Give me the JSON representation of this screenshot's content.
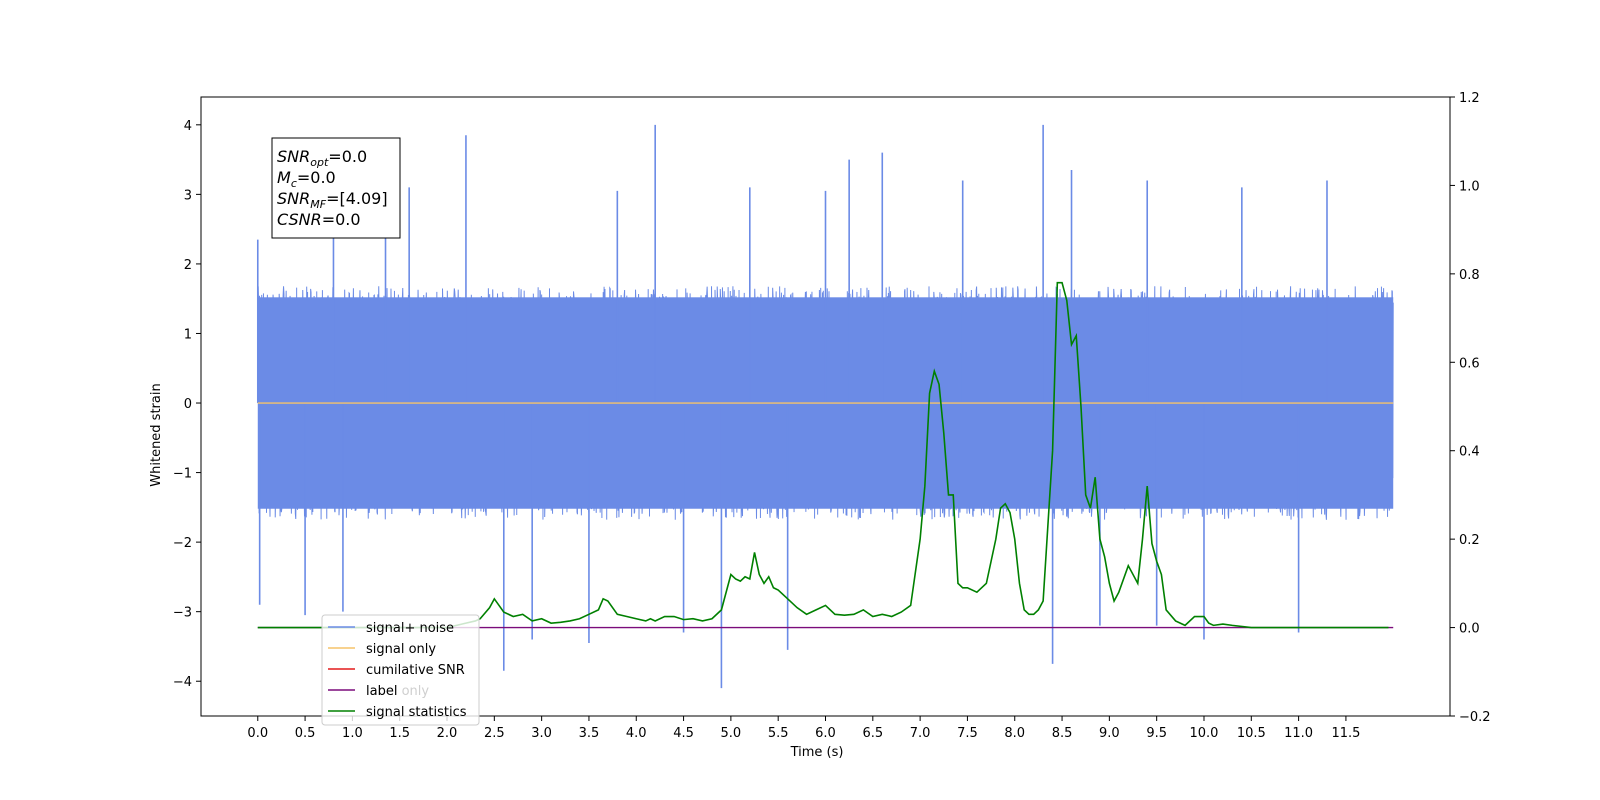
{
  "chart_data": {
    "type": "line",
    "title": "",
    "xlabel": "Time (s)",
    "ylabel": "Whitened strain",
    "y2label": "",
    "xlim": [
      -0.6,
      12.6
    ],
    "ylim": [
      -4.5,
      4.4
    ],
    "y2lim": [
      -0.2,
      1.2
    ],
    "x_ticks": [
      0.0,
      0.5,
      1.0,
      1.5,
      2.0,
      2.5,
      3.0,
      3.5,
      4.0,
      4.5,
      5.0,
      5.5,
      6.0,
      6.5,
      7.0,
      7.5,
      8.0,
      8.5,
      9.0,
      9.5,
      10.0,
      10.5,
      11.0,
      11.5
    ],
    "x_tick_labels": [
      "0.0",
      "0.5",
      "1.0",
      "1.5",
      "2.0",
      "2.5",
      "3.0",
      "3.5",
      "4.0",
      "4.5",
      "5.0",
      "5.5",
      "6.0",
      "6.5",
      "7.0",
      "7.5",
      "8.0",
      "8.5",
      "9.0",
      "9.5",
      "10.0",
      "10.5",
      "11.0",
      "11.5"
    ],
    "y_ticks": [
      -4,
      -3,
      -2,
      -1,
      0,
      1,
      2,
      3,
      4
    ],
    "y_tick_labels": [
      "−4",
      "−3",
      "−2",
      "−1",
      "0",
      "1",
      "2",
      "3",
      "4"
    ],
    "y2_ticks": [
      -0.2,
      0.0,
      0.2,
      0.4,
      0.6,
      0.8,
      1.0,
      1.2
    ],
    "y2_tick_labels": [
      "−0.2",
      "0.0",
      "0.2",
      "0.4",
      "0.6",
      "0.8",
      "1.0",
      "1.2"
    ],
    "grid": false,
    "legend_position": "lower-left",
    "series": [
      {
        "name": "signal+ noise",
        "axis": "left",
        "color": "#6b8be6",
        "kind": "noise",
        "x_range": [
          0.0,
          12.0
        ],
        "envelope": [
          1.6,
          -1.6
        ],
        "spikes": [
          {
            "x": 0.0,
            "y": 2.35
          },
          {
            "x": 0.02,
            "y": -2.9
          },
          {
            "x": 0.5,
            "y": -3.05
          },
          {
            "x": 0.8,
            "y": 3.05
          },
          {
            "x": 0.9,
            "y": -3.0
          },
          {
            "x": 1.35,
            "y": 3.05
          },
          {
            "x": 1.6,
            "y": 3.1
          },
          {
            "x": 2.2,
            "y": 3.85
          },
          {
            "x": 2.6,
            "y": -3.85
          },
          {
            "x": 2.9,
            "y": -3.4
          },
          {
            "x": 3.5,
            "y": -3.45
          },
          {
            "x": 3.8,
            "y": 3.05
          },
          {
            "x": 4.2,
            "y": 4.0
          },
          {
            "x": 4.5,
            "y": -3.3
          },
          {
            "x": 4.9,
            "y": -4.1
          },
          {
            "x": 5.2,
            "y": 3.1
          },
          {
            "x": 5.6,
            "y": -3.55
          },
          {
            "x": 6.0,
            "y": 3.05
          },
          {
            "x": 6.25,
            "y": 3.5
          },
          {
            "x": 6.6,
            "y": 3.6
          },
          {
            "x": 7.45,
            "y": 3.2
          },
          {
            "x": 8.3,
            "y": 4.0
          },
          {
            "x": 8.4,
            "y": -3.75
          },
          {
            "x": 8.6,
            "y": 3.35
          },
          {
            "x": 8.9,
            "y": -3.2
          },
          {
            "x": 9.4,
            "y": 3.2
          },
          {
            "x": 9.5,
            "y": -3.2
          },
          {
            "x": 10.0,
            "y": -3.4
          },
          {
            "x": 10.4,
            "y": 3.1
          },
          {
            "x": 11.0,
            "y": -3.3
          },
          {
            "x": 11.3,
            "y": 3.2
          }
        ]
      },
      {
        "name": "signal only",
        "axis": "left",
        "color": "#f5c36a",
        "x": [
          0.0,
          12.0
        ],
        "y": [
          0.0,
          0.0
        ]
      },
      {
        "name": "cumilative SNR",
        "axis": "right",
        "color": "#e31a1c",
        "x": [],
        "y": []
      },
      {
        "name": "label",
        "axis": "right",
        "color": "#7b0c7b",
        "x": [
          0.0,
          12.0
        ],
        "y": [
          0.0,
          0.0
        ]
      },
      {
        "name": "signal statistics",
        "axis": "right",
        "color": "#008000",
        "x": [
          0.0,
          2.0,
          2.1,
          2.2,
          2.3,
          2.35,
          2.45,
          2.5,
          2.6,
          2.7,
          2.8,
          2.9,
          3.0,
          3.1,
          3.2,
          3.3,
          3.4,
          3.5,
          3.6,
          3.65,
          3.7,
          3.8,
          3.9,
          4.0,
          4.1,
          4.15,
          4.2,
          4.3,
          4.4,
          4.5,
          4.6,
          4.7,
          4.8,
          4.9,
          5.0,
          5.05,
          5.1,
          5.15,
          5.2,
          5.25,
          5.3,
          5.35,
          5.4,
          5.45,
          5.5,
          5.6,
          5.7,
          5.8,
          5.9,
          6.0,
          6.1,
          6.2,
          6.3,
          6.4,
          6.5,
          6.6,
          6.7,
          6.8,
          6.9,
          7.0,
          7.05,
          7.1,
          7.15,
          7.2,
          7.25,
          7.3,
          7.35,
          7.4,
          7.45,
          7.5,
          7.6,
          7.7,
          7.8,
          7.85,
          7.9,
          7.95,
          8.0,
          8.05,
          8.1,
          8.15,
          8.2,
          8.25,
          8.3,
          8.4,
          8.45,
          8.5,
          8.55,
          8.6,
          8.65,
          8.7,
          8.75,
          8.8,
          8.85,
          8.9,
          8.95,
          9.0,
          9.05,
          9.1,
          9.2,
          9.3,
          9.35,
          9.4,
          9.45,
          9.5,
          9.55,
          9.6,
          9.7,
          9.8,
          9.9,
          10.0,
          10.05,
          10.1,
          10.2,
          10.3,
          10.5,
          11.0,
          11.5,
          11.95
        ],
        "y": [
          0.0,
          0.0,
          0.005,
          0.01,
          0.015,
          0.02,
          0.045,
          0.065,
          0.035,
          0.025,
          0.03,
          0.015,
          0.02,
          0.01,
          0.012,
          0.015,
          0.02,
          0.03,
          0.04,
          0.065,
          0.06,
          0.03,
          0.025,
          0.02,
          0.015,
          0.02,
          0.015,
          0.025,
          0.025,
          0.018,
          0.02,
          0.015,
          0.02,
          0.04,
          0.12,
          0.11,
          0.105,
          0.115,
          0.11,
          0.17,
          0.12,
          0.1,
          0.115,
          0.09,
          0.085,
          0.065,
          0.045,
          0.03,
          0.04,
          0.05,
          0.03,
          0.028,
          0.03,
          0.04,
          0.025,
          0.03,
          0.025,
          0.035,
          0.05,
          0.2,
          0.32,
          0.53,
          0.58,
          0.55,
          0.44,
          0.3,
          0.3,
          0.1,
          0.09,
          0.09,
          0.08,
          0.1,
          0.2,
          0.27,
          0.28,
          0.26,
          0.2,
          0.1,
          0.04,
          0.03,
          0.03,
          0.04,
          0.06,
          0.4,
          0.78,
          0.78,
          0.74,
          0.64,
          0.66,
          0.5,
          0.3,
          0.27,
          0.34,
          0.2,
          0.16,
          0.1,
          0.06,
          0.08,
          0.14,
          0.1,
          0.2,
          0.32,
          0.19,
          0.15,
          0.12,
          0.04,
          0.015,
          0.005,
          0.025,
          0.025,
          0.01,
          0.005,
          0.008,
          0.005,
          0.0,
          0.0,
          0.0,
          0.0
        ]
      }
    ],
    "info_box": [
      {
        "main": "SNR",
        "sub": "opt",
        "value": "=0.0"
      },
      {
        "main": "M",
        "sub": "c",
        "value": "=0.0"
      },
      {
        "main": "SNR",
        "sub": "MF",
        "value": "=[4.09]"
      },
      {
        "main": "CSNR",
        "sub": "",
        "value": "=0.0"
      }
    ],
    "legend": [
      {
        "label": "signal+ noise",
        "color": "#6b8be6"
      },
      {
        "label": "signal only",
        "color": "#f5c36a"
      },
      {
        "label": "cumilative SNR",
        "color": "#e31a1c"
      },
      {
        "label": "label",
        "color": "#7b0c7b"
      },
      {
        "label": "signal statistics",
        "color": "#008000"
      }
    ],
    "legend_ghost_text": "label only"
  }
}
